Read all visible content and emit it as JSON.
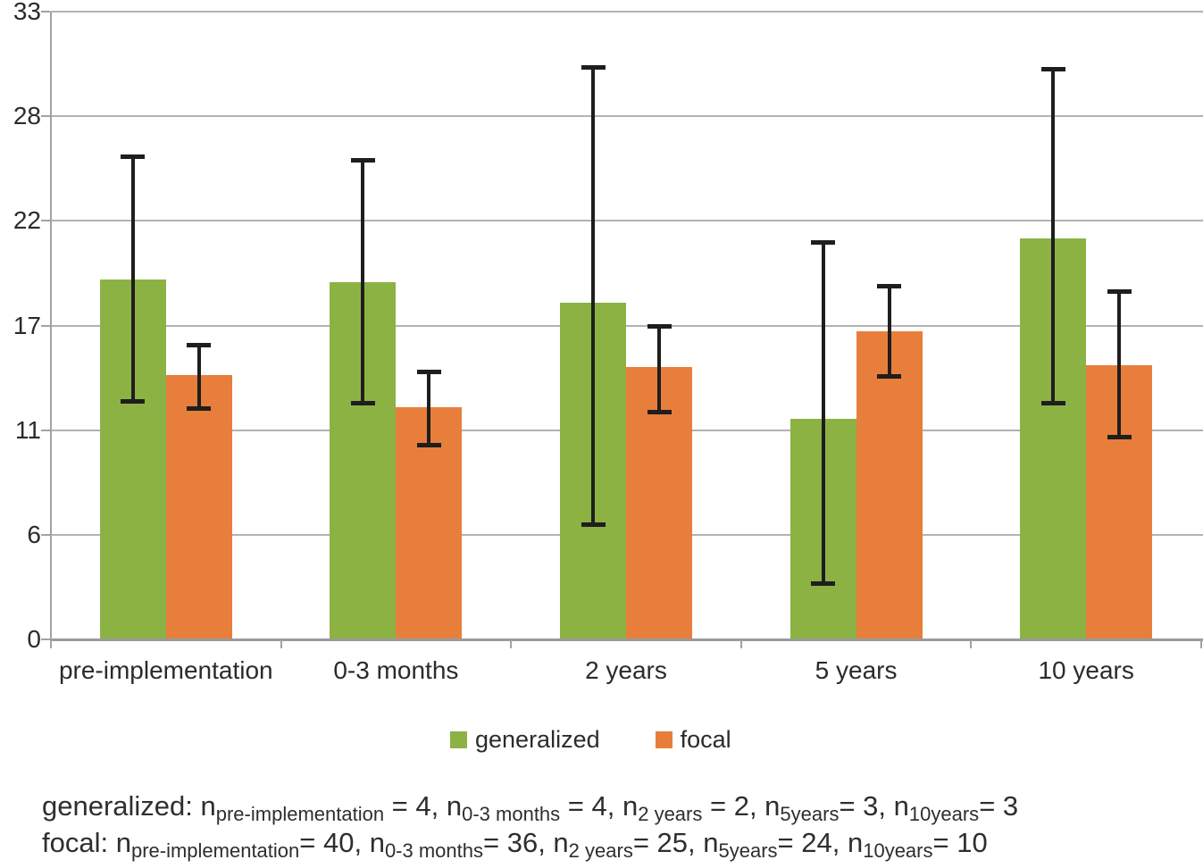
{
  "chart_data": {
    "type": "bar",
    "title": "",
    "xlabel": "",
    "ylabel": "",
    "categories": [
      "pre-implementation",
      "0-3 months",
      "2 years",
      "5 years",
      "10 years"
    ],
    "series": [
      {
        "name": "generalized",
        "color": "#8CB244",
        "values": [
          18.9,
          18.8,
          17.7,
          11.6,
          21.1
        ],
        "error_low": [
          12.5,
          12.4,
          6.0,
          2.9,
          12.4
        ],
        "error_high": [
          25.4,
          25.2,
          30.1,
          20.9,
          30.0
        ]
      },
      {
        "name": "focal",
        "color": "#E87E3B",
        "values": [
          13.9,
          12.2,
          14.3,
          16.2,
          14.4
        ],
        "error_low": [
          12.1,
          10.2,
          11.9,
          13.8,
          10.6
        ],
        "error_high": [
          15.5,
          14.1,
          16.5,
          18.6,
          18.3
        ]
      }
    ],
    "ylim": [
      0,
      33
    ],
    "yticks": [
      {
        "value": 0,
        "label": "0"
      },
      {
        "value": 5.5,
        "label": "6"
      },
      {
        "value": 11,
        "label": "11"
      },
      {
        "value": 16.5,
        "label": "17"
      },
      {
        "value": 22,
        "label": "22"
      },
      {
        "value": 27.5,
        "label": "28"
      },
      {
        "value": 33,
        "label": "33"
      }
    ],
    "grid": true,
    "legend_position": "below-plot",
    "error_bar_color": "#1E1E1E"
  },
  "footer": {
    "lines": [
      {
        "segments": [
          {
            "text": "generalized: n",
            "sub": false
          },
          {
            "text": "pre-implementation",
            "sub": true
          },
          {
            "text": " = 4, n",
            "sub": false
          },
          {
            "text": "0-3 months",
            "sub": true
          },
          {
            "text": " = 4, n",
            "sub": false
          },
          {
            "text": "2 years",
            "sub": true
          },
          {
            "text": " = 2, n",
            "sub": false
          },
          {
            "text": "5years",
            "sub": true
          },
          {
            "text": "= 3, n",
            "sub": false
          },
          {
            "text": "10years",
            "sub": true
          },
          {
            "text": "= 3",
            "sub": false
          }
        ]
      },
      {
        "segments": [
          {
            "text": "focal: n",
            "sub": false
          },
          {
            "text": "pre-implementation",
            "sub": true
          },
          {
            "text": "= 40, n",
            "sub": false
          },
          {
            "text": "0-3 months",
            "sub": true
          },
          {
            "text": "= 36, n",
            "sub": false
          },
          {
            "text": "2 years",
            "sub": true
          },
          {
            "text": "= 25, n",
            "sub": false
          },
          {
            "text": "5years",
            "sub": true
          },
          {
            "text": "= 24, n",
            "sub": false
          },
          {
            "text": "10years",
            "sub": true
          },
          {
            "text": "= 10",
            "sub": false
          }
        ]
      }
    ]
  }
}
